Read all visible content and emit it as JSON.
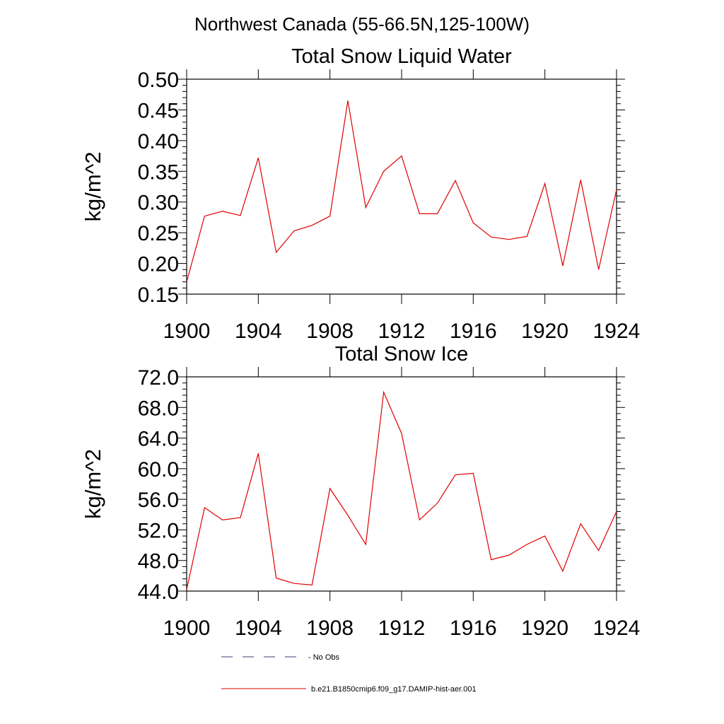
{
  "suptitle": "Northwest Canada (55-66.5N,125-100W)",
  "legend": [
    {
      "label": "No Obs",
      "style": "dashed",
      "color": "#3b3b6b"
    },
    {
      "label": "b.e21.B1850cmip6.f09_g17.DAMIP-hist-aer.001",
      "style": "solid",
      "color": "#e00000"
    }
  ],
  "chart_data": [
    {
      "type": "line",
      "title": "Total Snow Liquid Water",
      "xlabel": "",
      "ylabel": "kg/m^2",
      "xlim": [
        1900,
        1924
      ],
      "ylim": [
        0.15,
        0.5
      ],
      "grid": false,
      "x_ticks": [
        "1900",
        "1904",
        "1908",
        "1912",
        "1916",
        "1920",
        "1924"
      ],
      "y_ticks": [
        "0.15",
        "0.20",
        "0.25",
        "0.30",
        "0.35",
        "0.40",
        "0.45",
        "0.50"
      ],
      "x": [
        1900,
        1901,
        1902,
        1903,
        1904,
        1905,
        1906,
        1907,
        1908,
        1909,
        1910,
        1911,
        1912,
        1913,
        1914,
        1915,
        1916,
        1917,
        1918,
        1919,
        1920,
        1921,
        1922,
        1923,
        1924
      ],
      "series": [
        {
          "color": "#e00000",
          "values": [
            0.17,
            0.277,
            0.285,
            0.278,
            0.372,
            0.218,
            0.253,
            0.262,
            0.277,
            0.465,
            0.291,
            0.35,
            0.375,
            0.281,
            0.281,
            0.335,
            0.266,
            0.243,
            0.239,
            0.244,
            0.33,
            0.196,
            0.336,
            0.19,
            0.32
          ]
        }
      ]
    },
    {
      "type": "line",
      "title": "Total Snow Ice",
      "xlabel": "",
      "ylabel": "kg/m^2",
      "xlim": [
        1900,
        1924
      ],
      "ylim": [
        44.0,
        72.0
      ],
      "grid": false,
      "x_ticks": [
        "1900",
        "1904",
        "1908",
        "1912",
        "1916",
        "1920",
        "1924"
      ],
      "y_ticks": [
        "44.0",
        "48.0",
        "52.0",
        "56.0",
        "60.0",
        "64.0",
        "68.0",
        "72.0"
      ],
      "x": [
        1900,
        1901,
        1902,
        1903,
        1904,
        1905,
        1906,
        1907,
        1908,
        1909,
        1910,
        1911,
        1912,
        1913,
        1914,
        1915,
        1916,
        1917,
        1918,
        1919,
        1920,
        1921,
        1922,
        1923,
        1924
      ],
      "series": [
        {
          "color": "#e00000",
          "values": [
            44.2,
            54.9,
            53.3,
            53.6,
            62.0,
            45.7,
            45.0,
            44.8,
            57.4,
            53.9,
            50.1,
            70.0,
            64.6,
            53.3,
            55.5,
            59.2,
            59.4,
            48.1,
            48.7,
            50.1,
            51.2,
            46.6,
            52.8,
            49.3,
            54.4
          ]
        }
      ]
    }
  ]
}
